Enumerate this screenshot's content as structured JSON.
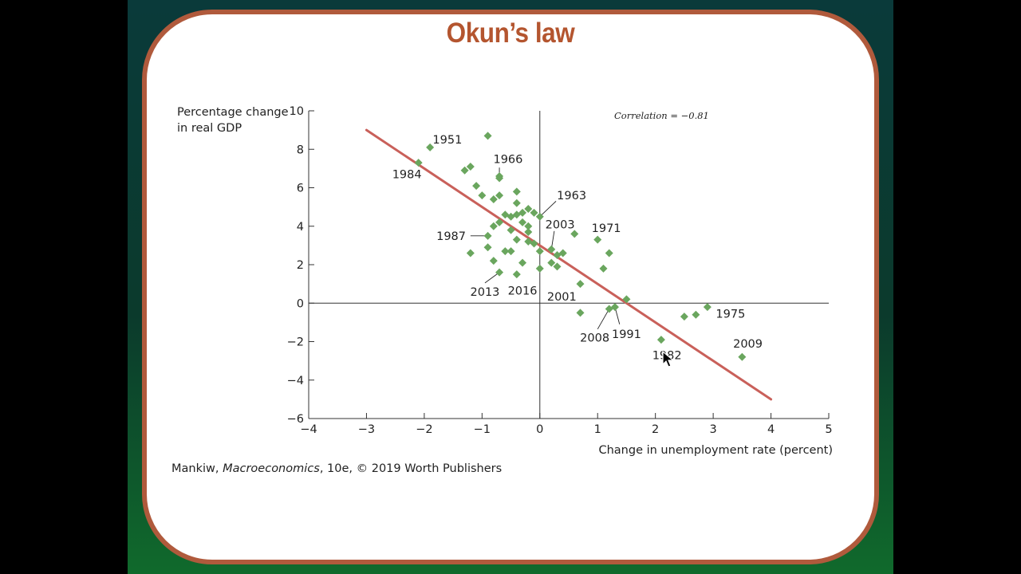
{
  "slide": {
    "title": "Okun’s law",
    "caption_prefix": "Mankiw, ",
    "caption_book": "Macroeconomics",
    "caption_suffix": ", 10e, © 2019 Worth Publishers"
  },
  "colors": {
    "points": "#6aa65e",
    "regression_line": "#c9605a",
    "title": "#b4552f",
    "frame_border": "#b05a3c"
  },
  "chart_data": {
    "type": "scatter",
    "ylabel_line1": "Percentage change",
    "ylabel_line2": "in real GDP",
    "xlabel": "Change in unemployment rate (percent)",
    "annotation": "Correlation = −0.81",
    "xlim": [
      -4,
      5
    ],
    "ylim": [
      -6,
      10
    ],
    "x_ticks": [
      -4,
      -3,
      -2,
      -1,
      0,
      1,
      2,
      3,
      4,
      5
    ],
    "x_tick_labels": [
      "−4",
      "−3",
      "−2",
      "−1",
      "0",
      "1",
      "2",
      "3",
      "4",
      "5"
    ],
    "y_ticks": [
      -6,
      -4,
      -2,
      0,
      2,
      4,
      6,
      8,
      10
    ],
    "y_tick_labels": [
      "−6",
      "−4",
      "−2",
      "0",
      "2",
      "4",
      "6",
      "8",
      "10"
    ],
    "regression_line": {
      "x": [
        -3,
        4
      ],
      "y": [
        9,
        -5
      ]
    },
    "points": [
      {
        "x": -1.9,
        "y": 8.1
      },
      {
        "x": -2.1,
        "y": 7.3
      },
      {
        "x": -0.9,
        "y": 8.7
      },
      {
        "x": -0.7,
        "y": 6.6
      },
      {
        "x": -0.7,
        "y": 6.5
      },
      {
        "x": -1.3,
        "y": 6.9
      },
      {
        "x": -1.2,
        "y": 7.1
      },
      {
        "x": -1.1,
        "y": 6.1
      },
      {
        "x": -1.0,
        "y": 5.6
      },
      {
        "x": -0.8,
        "y": 5.4
      },
      {
        "x": -0.7,
        "y": 5.6
      },
      {
        "x": -0.4,
        "y": 5.8
      },
      {
        "x": -0.4,
        "y": 5.2
      },
      {
        "x": -0.6,
        "y": 4.6
      },
      {
        "x": -0.5,
        "y": 4.5
      },
      {
        "x": -0.4,
        "y": 4.6
      },
      {
        "x": -0.3,
        "y": 4.7
      },
      {
        "x": -0.2,
        "y": 4.9
      },
      {
        "x": -0.1,
        "y": 4.7
      },
      {
        "x": 0.0,
        "y": 4.5
      },
      {
        "x": -0.3,
        "y": 4.2
      },
      {
        "x": -0.2,
        "y": 4.0
      },
      {
        "x": -0.2,
        "y": 3.7
      },
      {
        "x": -0.8,
        "y": 4.0
      },
      {
        "x": -0.7,
        "y": 4.2
      },
      {
        "x": -0.9,
        "y": 3.5
      },
      {
        "x": -0.5,
        "y": 3.8
      },
      {
        "x": -0.4,
        "y": 3.3
      },
      {
        "x": -0.2,
        "y": 3.2
      },
      {
        "x": -0.1,
        "y": 3.1
      },
      {
        "x": 0.0,
        "y": 2.7
      },
      {
        "x": 0.2,
        "y": 2.8
      },
      {
        "x": 0.3,
        "y": 2.5
      },
      {
        "x": 0.4,
        "y": 2.6
      },
      {
        "x": -0.6,
        "y": 2.7
      },
      {
        "x": -0.5,
        "y": 2.7
      },
      {
        "x": -1.2,
        "y": 2.6
      },
      {
        "x": -0.9,
        "y": 2.9
      },
      {
        "x": -0.8,
        "y": 2.2
      },
      {
        "x": -0.3,
        "y": 2.1
      },
      {
        "x": 0.2,
        "y": 2.1
      },
      {
        "x": 0.3,
        "y": 1.9
      },
      {
        "x": 0.0,
        "y": 1.8
      },
      {
        "x": -0.7,
        "y": 1.6
      },
      {
        "x": -0.4,
        "y": 1.5
      },
      {
        "x": 0.7,
        "y": 1.0
      },
      {
        "x": 0.6,
        "y": 3.6
      },
      {
        "x": 1.0,
        "y": 3.3
      },
      {
        "x": 1.2,
        "y": 2.6
      },
      {
        "x": 1.1,
        "y": 1.8
      },
      {
        "x": 0.7,
        "y": -0.5
      },
      {
        "x": 1.2,
        "y": -0.3
      },
      {
        "x": 1.3,
        "y": -0.2
      },
      {
        "x": 1.5,
        "y": 0.2
      },
      {
        "x": 2.5,
        "y": -0.7
      },
      {
        "x": 2.7,
        "y": -0.6
      },
      {
        "x": 2.9,
        "y": -0.2
      },
      {
        "x": 2.1,
        "y": -1.9
      },
      {
        "x": 3.5,
        "y": -2.8
      }
    ],
    "year_labels": [
      {
        "text": "1951",
        "x": -1.6,
        "y": 8.5
      },
      {
        "text": "1984",
        "x": -2.3,
        "y": 6.7
      },
      {
        "text": "1966",
        "x": -0.55,
        "y": 7.5
      },
      {
        "text": "1963",
        "x": 0.55,
        "y": 5.6
      },
      {
        "text": "2003",
        "x": 0.35,
        "y": 4.1
      },
      {
        "text": "1971",
        "x": 1.15,
        "y": 3.9
      },
      {
        "text": "1987",
        "x": -1.535,
        "y": 3.5
      },
      {
        "text": "2013",
        "x": -0.95,
        "y": 0.6
      },
      {
        "text": "2016",
        "x": -0.3,
        "y": 0.65
      },
      {
        "text": "2001",
        "x": 0.38,
        "y": 0.35
      },
      {
        "text": "2008",
        "x": 0.95,
        "y": -1.8
      },
      {
        "text": "1991",
        "x": 1.5,
        "y": -1.6
      },
      {
        "text": "1982",
        "x": 2.2,
        "y": -2.7
      },
      {
        "text": "1975",
        "x": 3.3,
        "y": -0.55
      },
      {
        "text": "2009",
        "x": 3.6,
        "y": -2.1
      }
    ],
    "leader_lines": [
      {
        "x1": -0.7,
        "y1": 6.5,
        "x2": -0.7,
        "y2": 7.05
      },
      {
        "x1": 0.0,
        "y1": 4.5,
        "x2": 0.28,
        "y2": 5.3
      },
      {
        "x1": 0.2,
        "y1": 2.8,
        "x2": 0.25,
        "y2": 3.75
      },
      {
        "x1": -0.9,
        "y1": 3.5,
        "x2": -1.2,
        "y2": 3.5
      },
      {
        "x1": -0.7,
        "y1": 1.6,
        "x2": -0.95,
        "y2": 1.05
      },
      {
        "x1": 1.2,
        "y1": -0.3,
        "x2": 1.0,
        "y2": -1.35
      },
      {
        "x1": 1.3,
        "y1": -0.2,
        "x2": 1.38,
        "y2": -1.1
      }
    ]
  }
}
